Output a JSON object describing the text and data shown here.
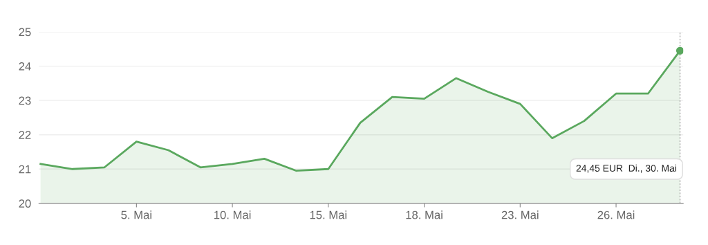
{
  "chart_data": {
    "type": "area",
    "categories": [
      null,
      null,
      null,
      "5. Mai",
      null,
      null,
      "10. Mai",
      null,
      null,
      "15. Mai",
      null,
      null,
      "18. Mai",
      null,
      null,
      "23. Mai",
      null,
      null,
      "26. Mai",
      null,
      null
    ],
    "series": [
      {
        "color": "#5aa85e",
        "values": [
          21.15,
          21.0,
          21.05,
          21.8,
          21.55,
          21.05,
          21.15,
          21.3,
          20.95,
          21.0,
          22.35,
          23.1,
          23.05,
          23.65,
          23.25,
          22.9,
          21.9,
          22.4,
          23.2,
          23.2,
          24.45
        ]
      }
    ],
    "ylim": [
      20,
      25
    ],
    "yticks": [
      20,
      21,
      22,
      23,
      24,
      25
    ],
    "grid": "y",
    "marker": "none",
    "line_style": "solid",
    "annotations": [
      "24,45 EUR  Di., 30. Mai"
    ]
  }
}
